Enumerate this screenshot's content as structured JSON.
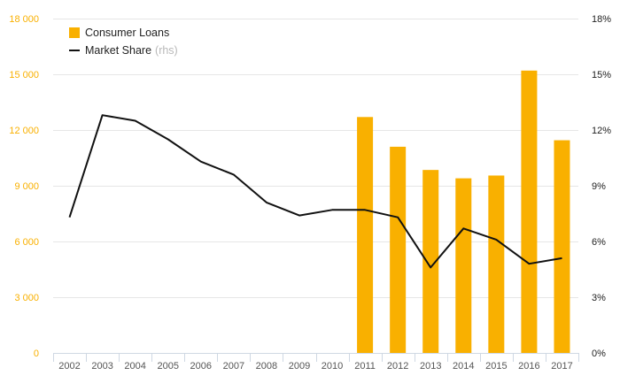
{
  "chart_data": {
    "type": "bar",
    "categories": [
      "2002",
      "2003",
      "2004",
      "2005",
      "2006",
      "2007",
      "2008",
      "2009",
      "2010",
      "2011",
      "2012",
      "2013",
      "2014",
      "2015",
      "2016",
      "2017"
    ],
    "series": [
      {
        "name": "Consumer Loans",
        "type": "bar",
        "axis": "left",
        "color": "#f9b000",
        "values": [
          null,
          null,
          null,
          null,
          null,
          null,
          null,
          null,
          null,
          12700,
          11100,
          9850,
          9400,
          9550,
          15200,
          11450
        ]
      },
      {
        "name": "Market Share",
        "name_suffix": "(rhs)",
        "type": "line",
        "axis": "right",
        "color": "#111111",
        "values": [
          7.3,
          12.8,
          12.5,
          11.5,
          10.3,
          9.6,
          8.1,
          7.4,
          7.7,
          7.7,
          7.3,
          4.6,
          6.7,
          6.1,
          4.8,
          5.1
        ]
      }
    ],
    "y_left": {
      "ticks": [
        0,
        3000,
        6000,
        9000,
        12000,
        15000,
        18000
      ],
      "tick_labels": [
        "0",
        "3 000",
        "6 000",
        "9 000",
        "12 000",
        "15 000",
        "18 000"
      ],
      "ylim": [
        0,
        18000
      ],
      "color": "#f9b000"
    },
    "y_right": {
      "ticks": [
        0,
        3,
        6,
        9,
        12,
        15,
        18
      ],
      "tick_labels": [
        "0%",
        "3%",
        "6%",
        "9%",
        "12%",
        "15%",
        "18%"
      ],
      "ylim": [
        0,
        18
      ]
    },
    "grid": true,
    "legend_position": "top-left",
    "title": "",
    "xlabel": "",
    "ylabel": ""
  }
}
